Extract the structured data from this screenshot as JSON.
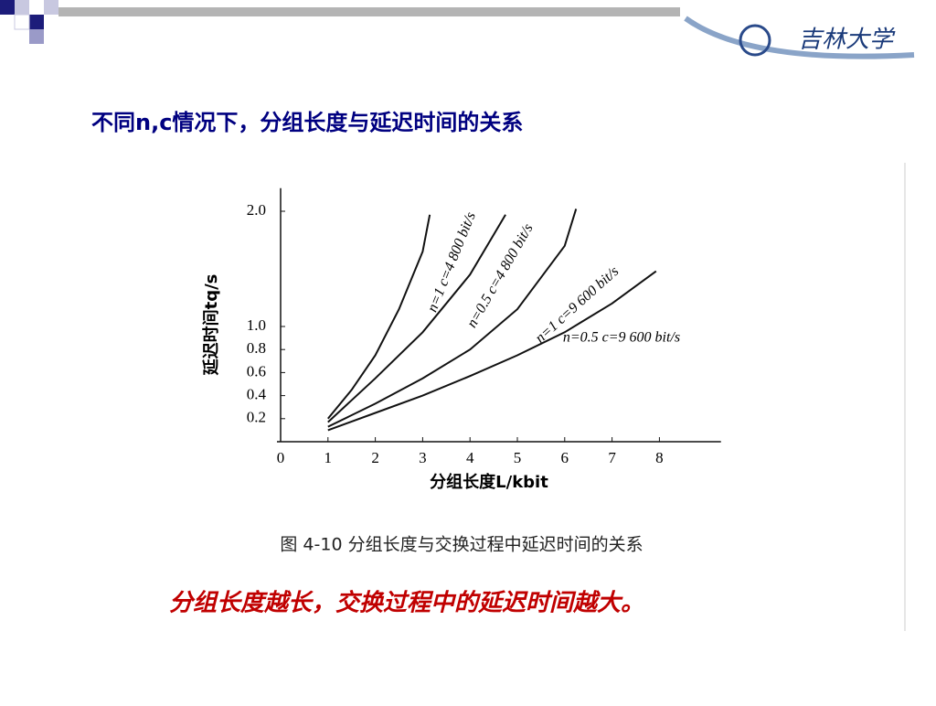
{
  "slide": {
    "logo": "吉林大学",
    "title": "不同n,c情况下，分组长度与延迟时间的关系",
    "caption": "图 4-10   分组长度与交换过程中延迟时间的关系",
    "body": "分组长度越长，交换过程中的延迟时间越大。"
  },
  "chart_data": {
    "type": "line",
    "x_label": "分组长度L/kbit",
    "y_label": "延迟时间tq/s",
    "xlim": [
      0,
      9.3
    ],
    "xticks": [
      0,
      1,
      2,
      3,
      4,
      5,
      6,
      7,
      8
    ],
    "ylim": [
      0,
      2.2
    ],
    "yticks": [
      0.2,
      0.4,
      0.6,
      0.8,
      {
        "value": 1.0,
        "label": "1.0"
      },
      {
        "value": 2.0,
        "label": "2.0"
      }
    ],
    "series": [
      {
        "name": "n=1 c=4 800 bit/s",
        "color": "#111111",
        "x": [
          1,
          1.5,
          2,
          2.5,
          3,
          3.15
        ],
        "values": [
          0.2,
          0.45,
          0.75,
          1.15,
          1.65,
          1.97
        ]
      },
      {
        "name": "n=0.5 c=4 800 bit/s",
        "color": "#111111",
        "x": [
          1,
          2,
          3,
          4,
          4.75
        ],
        "values": [
          0.17,
          0.55,
          0.95,
          1.45,
          1.97
        ]
      },
      {
        "name": "n=1 c=9 600 bit/s",
        "color": "#111111",
        "x": [
          1,
          2,
          3,
          4,
          5,
          6,
          6.24
        ],
        "values": [
          0.13,
          0.33,
          0.55,
          0.8,
          1.15,
          1.7,
          2.02
        ]
      },
      {
        "name": "n=0.5 c=9 600 bit/s",
        "color": "#111111",
        "x": [
          1,
          2,
          3,
          4,
          5,
          6,
          7,
          7.93
        ],
        "values": [
          0.1,
          0.25,
          0.4,
          0.57,
          0.75,
          0.95,
          1.2,
          1.48
        ]
      }
    ]
  }
}
